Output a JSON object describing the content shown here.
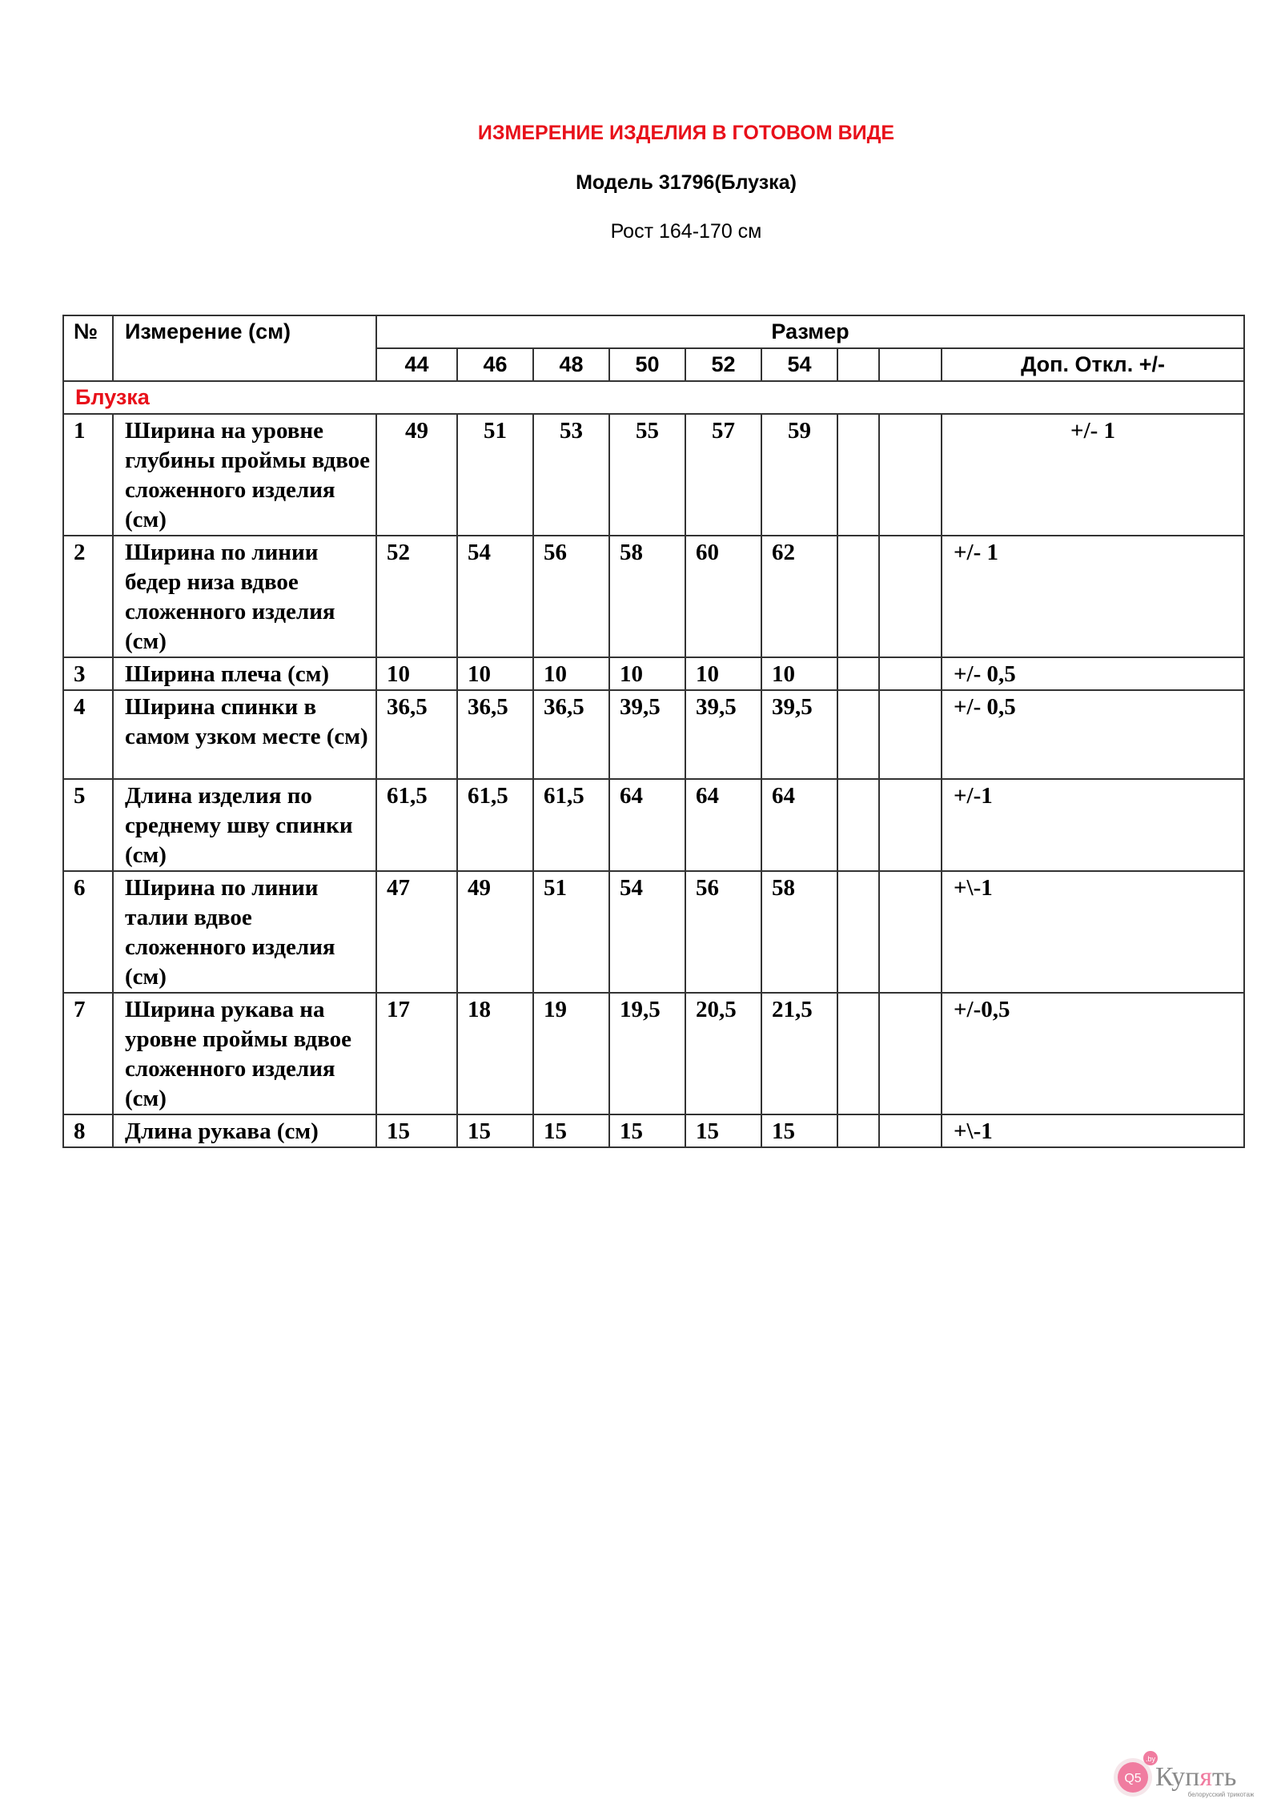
{
  "title": "ИЗМЕРЕНИЕ ИЗДЕЛИЯ В ГОТОВОМ ВИДЕ",
  "model": "Модель 31796(Блузка)",
  "height": "Рост 164-170 см",
  "table": {
    "col_no": "№",
    "col_measure": "Измерение (см)",
    "col_size": "Размер",
    "sizes": [
      "44",
      "46",
      "48",
      "50",
      "52",
      "54",
      "",
      ""
    ],
    "col_tolerance": "Доп.  Откл. +/-",
    "section": "Блузка",
    "rows": [
      {
        "no": "1",
        "name": "Ширина на уровне глубины проймы вдвое сложенного изделия (см)",
        "values": [
          "49",
          "51",
          "53",
          "55",
          "57",
          "59",
          "",
          ""
        ],
        "tol": "+/- 1"
      },
      {
        "no": "2",
        "name": "Ширина по линии бедер низа вдвое сложенного изделия (см)",
        "values": [
          "52",
          "54",
          "56",
          "58",
          "60",
          "62",
          "",
          ""
        ],
        "tol": "+/- 1"
      },
      {
        "no": "3",
        "name": "Ширина плеча (см)",
        "values": [
          "10",
          "10",
          "10",
          "10",
          "10",
          "10",
          "",
          ""
        ],
        "tol": "+/- 0,5"
      },
      {
        "no": "4",
        "name": "Ширина спинки в самом узком месте (см)",
        "values": [
          "36,5",
          "36,5",
          "36,5",
          "39,5",
          "39,5",
          "39,5",
          "",
          ""
        ],
        "tol": "+/- 0,5"
      },
      {
        "no": "5",
        "name": "Длина изделия по среднему шву спинки (см)",
        "values": [
          "61,5",
          "61,5",
          "61,5",
          "64",
          "64",
          "64",
          "",
          ""
        ],
        "tol": "+/-1"
      },
      {
        "no": "6",
        "name": "Ширина по линии талии вдвое сложенного изделия (см)",
        "values": [
          "47",
          "49",
          "51",
          "54",
          "56",
          "58",
          "",
          ""
        ],
        "tol": "+\\-1"
      },
      {
        "no": "7",
        "name": "Ширина рукава на уровне проймы вдвое сложенного изделия (см)",
        "values": [
          "17",
          "18",
          "19",
          "19,5",
          "20,5",
          "21,5",
          "",
          ""
        ],
        "tol": "+/-0,5"
      },
      {
        "no": "8",
        "name": "Длина рукава (см)",
        "values": [
          "15",
          "15",
          "15",
          "15",
          "15",
          "15",
          "",
          ""
        ],
        "tol": "+\\-1"
      }
    ]
  },
  "logo": {
    "text": "Купять",
    "badge": "Q5",
    "domain": ".by",
    "tagline": "белорусский трикотаж",
    "colors": {
      "pink": "#f07ca0",
      "gray": "#8a8a8a"
    }
  }
}
